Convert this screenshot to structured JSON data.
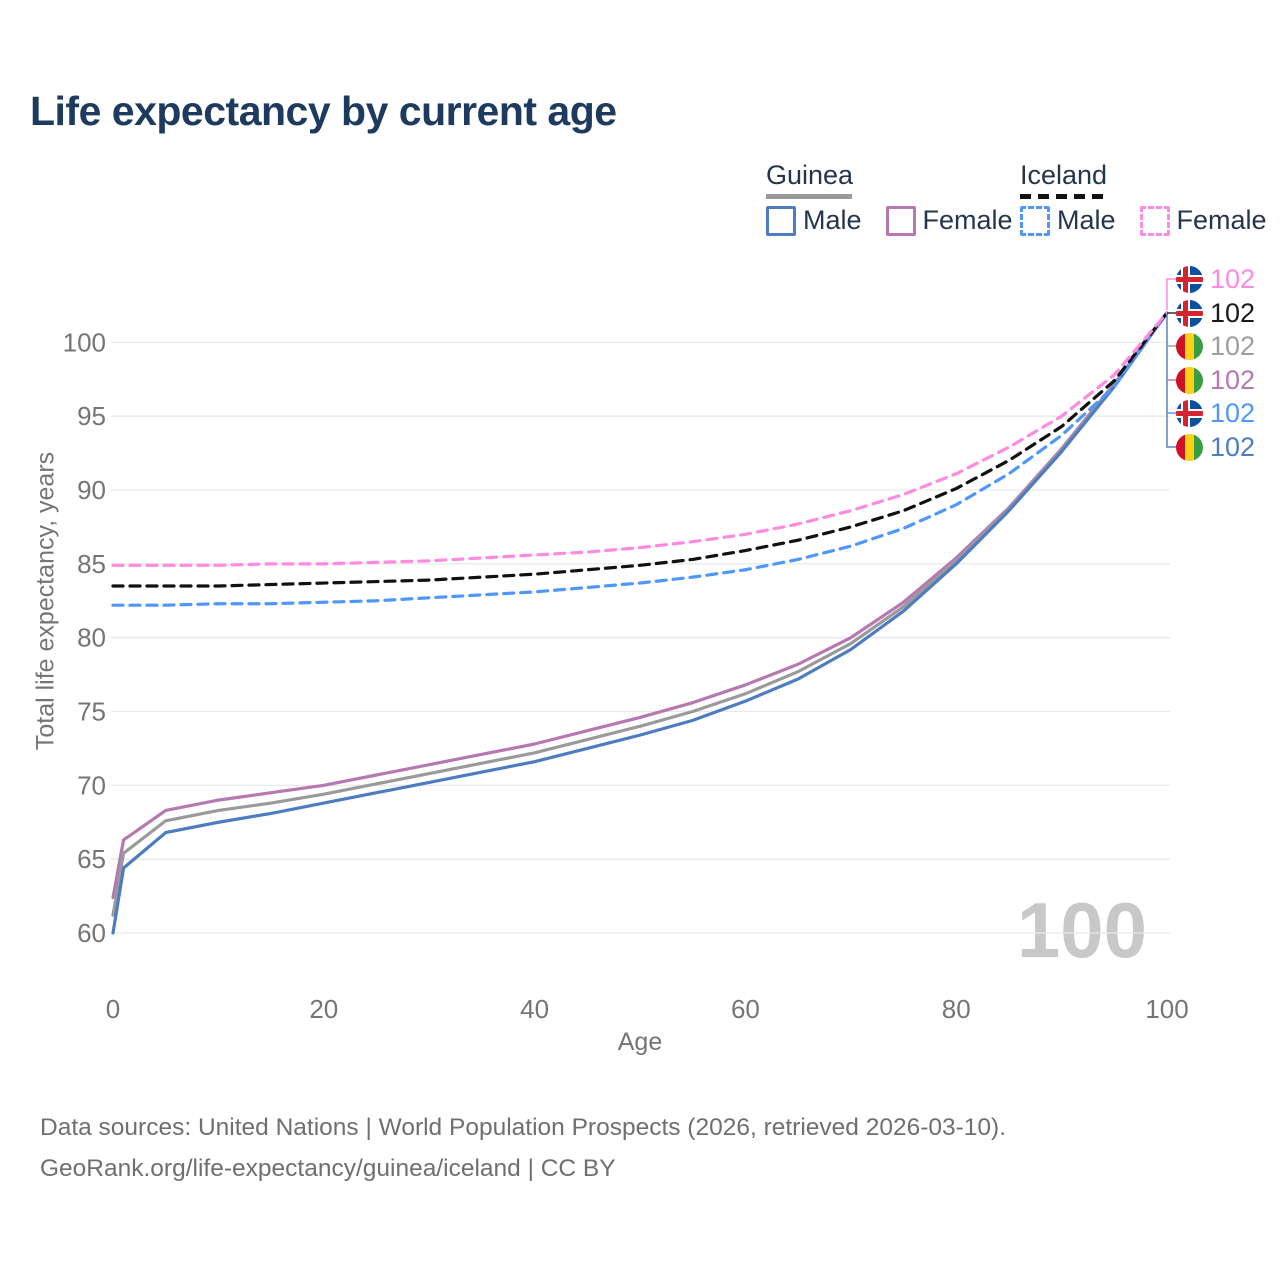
{
  "title": "Life expectancy by current age",
  "legend": {
    "guinea": {
      "label": "Guinea",
      "male": "Male",
      "female": "Female",
      "both_color": "#9a9a9a",
      "male_color": "#4d7cc1",
      "female_color": "#b678b2",
      "line_style": "solid"
    },
    "iceland": {
      "label": "Iceland",
      "male": "Male",
      "female": "Female",
      "both_color": "#111111",
      "male_color": "#4f97fc",
      "female_color": "#ff8ae1",
      "line_style": "dashed"
    }
  },
  "chart_data": {
    "type": "line",
    "title": "Life expectancy by current age",
    "xlabel": "Age",
    "ylabel": "Total life expectancy, years",
    "xlim": [
      0,
      100
    ],
    "ylim": [
      57.5,
      105
    ],
    "xticks": [
      0,
      20,
      40,
      60,
      80,
      100
    ],
    "yticks": [
      60,
      65,
      70,
      75,
      80,
      85,
      90,
      95,
      100
    ],
    "grid": "horizontal",
    "legend_position": "top-right",
    "watermark": "100",
    "ages": [
      0,
      1,
      5,
      10,
      15,
      20,
      25,
      30,
      35,
      40,
      45,
      50,
      55,
      60,
      65,
      70,
      75,
      80,
      85,
      90,
      95,
      100
    ],
    "series": [
      {
        "id": "guinea-female",
        "name": "Guinea Female",
        "color": "#b678b2",
        "dash": "solid",
        "values": [
          62.4,
          66.3,
          68.3,
          69.0,
          69.5,
          70.0,
          70.7,
          71.4,
          72.1,
          72.8,
          73.7,
          74.6,
          75.6,
          76.8,
          78.2,
          80.0,
          82.4,
          85.4,
          88.8,
          92.8,
          97.2,
          102.0
        ]
      },
      {
        "id": "guinea-both",
        "name": "Guinea Both sexes",
        "color": "#9a9a9a",
        "dash": "solid",
        "values": [
          61.2,
          65.4,
          67.6,
          68.3,
          68.8,
          69.4,
          70.1,
          70.8,
          71.5,
          72.2,
          73.1,
          74.0,
          75.0,
          76.2,
          77.7,
          79.6,
          82.1,
          85.2,
          88.7,
          92.7,
          97.1,
          102.0
        ]
      },
      {
        "id": "guinea-male",
        "name": "Guinea Male",
        "color": "#4d7cc1",
        "dash": "solid",
        "values": [
          60.0,
          64.4,
          66.8,
          67.5,
          68.1,
          68.8,
          69.5,
          70.2,
          70.9,
          71.6,
          72.5,
          73.4,
          74.4,
          75.7,
          77.2,
          79.2,
          81.8,
          85.0,
          88.6,
          92.6,
          97.0,
          102.0
        ]
      },
      {
        "id": "iceland-male",
        "name": "Iceland Male",
        "color": "#4f97fc",
        "dash": "dashed",
        "values": [
          82.2,
          82.2,
          82.2,
          82.3,
          82.3,
          82.4,
          82.5,
          82.7,
          82.9,
          83.1,
          83.4,
          83.7,
          84.1,
          84.6,
          85.3,
          86.2,
          87.4,
          89.0,
          91.1,
          93.7,
          97.0,
          102.0
        ]
      },
      {
        "id": "iceland-both",
        "name": "Iceland Both sexes",
        "color": "#111111",
        "dash": "dashed",
        "values": [
          83.5,
          83.5,
          83.5,
          83.5,
          83.6,
          83.7,
          83.8,
          83.9,
          84.1,
          84.3,
          84.6,
          84.9,
          85.3,
          85.9,
          86.6,
          87.5,
          88.6,
          90.1,
          92.0,
          94.3,
          97.4,
          102.0
        ]
      },
      {
        "id": "iceland-female",
        "name": "Iceland Female",
        "color": "#ff8ae1",
        "dash": "dashed",
        "values": [
          84.9,
          84.9,
          84.9,
          84.9,
          85.0,
          85.0,
          85.1,
          85.2,
          85.4,
          85.6,
          85.8,
          86.1,
          86.5,
          87.0,
          87.7,
          88.6,
          89.7,
          91.1,
          92.9,
          95.0,
          97.8,
          102.0
        ]
      }
    ]
  },
  "end_labels": [
    {
      "series": "iceland-female",
      "flag": "iceland",
      "value": "102",
      "color": "#ff8ae1"
    },
    {
      "series": "iceland-both",
      "flag": "iceland",
      "value": "102",
      "color": "#1a1a1a"
    },
    {
      "series": "guinea-both",
      "flag": "guinea",
      "value": "102",
      "color": "#9e9e9e"
    },
    {
      "series": "guinea-female",
      "flag": "guinea",
      "value": "102",
      "color": "#b678b2"
    },
    {
      "series": "iceland-male",
      "flag": "iceland",
      "value": "102",
      "color": "#4f97fc"
    },
    {
      "series": "guinea-male",
      "flag": "guinea",
      "value": "102",
      "color": "#4d7cc1"
    }
  ],
  "footer": {
    "line1": "Data sources: United Nations | World Population Prospects (2026, retrieved 2026-03-10).",
    "line2": "GeoRank.org/life-expectancy/guinea/iceland | CC BY"
  }
}
